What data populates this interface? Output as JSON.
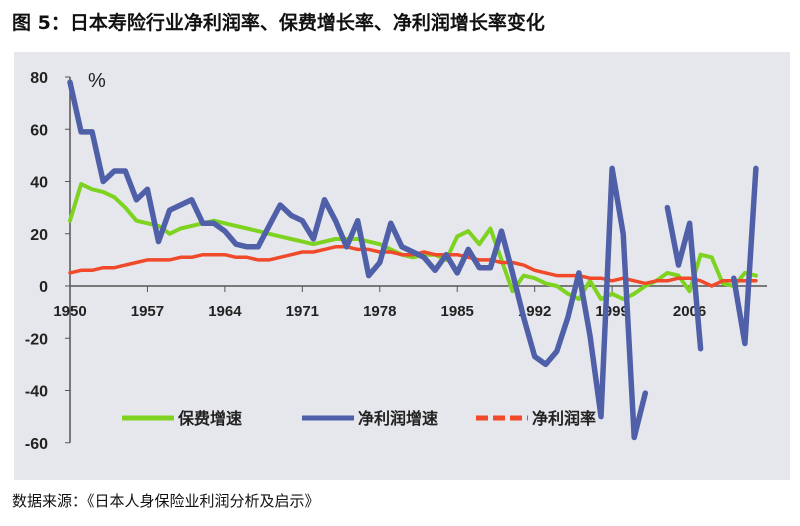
{
  "title": "图 5：日本寿险行业净利润率、保费增长率、净利润增长率变化",
  "source": "数据来源：《日本人身保险业利润分析及启示》",
  "chart_data": {
    "type": "line",
    "title": "",
    "xlabel": "",
    "ylabel": "%",
    "xlim": [
      1950,
      2013
    ],
    "ylim": [
      -60,
      80
    ],
    "x_ticks": [
      1950,
      1957,
      1964,
      1971,
      1978,
      1985,
      1992,
      1999,
      2006
    ],
    "y_ticks": [
      80,
      60,
      40,
      20,
      0,
      -20,
      -40,
      -60
    ],
    "grid": false,
    "legend_position": "bottom",
    "x": [
      1950,
      1951,
      1952,
      1953,
      1954,
      1955,
      1956,
      1957,
      1958,
      1959,
      1960,
      1961,
      1962,
      1963,
      1964,
      1965,
      1966,
      1967,
      1968,
      1969,
      1970,
      1971,
      1972,
      1973,
      1974,
      1975,
      1976,
      1977,
      1978,
      1979,
      1980,
      1981,
      1982,
      1983,
      1984,
      1985,
      1986,
      1987,
      1988,
      1989,
      1990,
      1991,
      1992,
      1993,
      1994,
      1995,
      1996,
      1997,
      1998,
      1999,
      2000,
      2001,
      2002,
      2003,
      2004,
      2005,
      2006,
      2007,
      2008,
      2009,
      2010,
      2011,
      2012
    ],
    "series": [
      {
        "name": "保费增速",
        "color": "#7ed321",
        "values": [
          25,
          39,
          37,
          36,
          34,
          30,
          25,
          24,
          23,
          20,
          22,
          23,
          24,
          25,
          24,
          23,
          22,
          21,
          20,
          19,
          18,
          17,
          16,
          17,
          18,
          18,
          18,
          17,
          16,
          14,
          12,
          11,
          12,
          12,
          10,
          19,
          21,
          16,
          22,
          10,
          -2,
          4,
          3,
          1,
          0,
          -3,
          -5,
          2,
          -5,
          -3,
          -5,
          -3,
          0,
          2,
          5,
          4,
          -2,
          12,
          11,
          1,
          0,
          5,
          4
        ]
      },
      {
        "name": "净利润增速",
        "color": "#5060a8",
        "values": [
          78,
          59,
          59,
          40,
          44,
          44,
          33,
          37,
          17,
          29,
          31,
          33,
          24,
          24,
          21,
          16,
          15,
          15,
          23,
          31,
          27,
          25,
          18,
          33,
          25,
          15,
          25,
          4,
          9,
          24,
          15,
          13,
          11,
          6,
          12,
          5,
          14,
          7,
          7,
          21,
          5,
          -12,
          -27,
          -30,
          -25,
          -12,
          5,
          -19,
          -50,
          45,
          20,
          -58,
          -41,
          null,
          30,
          8,
          24,
          -24,
          null,
          null,
          3,
          -22,
          45
        ]
      },
      {
        "name": "净利润率",
        "color": "#f04a2a",
        "dashed_legend": true,
        "values": [
          5,
          6,
          6,
          7,
          7,
          8,
          9,
          10,
          10,
          10,
          11,
          11,
          12,
          12,
          12,
          11,
          11,
          10,
          10,
          11,
          12,
          13,
          13,
          14,
          15,
          15,
          14,
          14,
          13,
          13,
          12,
          12,
          13,
          12,
          12,
          12,
          11,
          10,
          10,
          9,
          9,
          8,
          6,
          5,
          4,
          4,
          4,
          3,
          3,
          2,
          3,
          2,
          1,
          2,
          2,
          3,
          3,
          2,
          0,
          2,
          2,
          2,
          2
        ]
      }
    ]
  }
}
